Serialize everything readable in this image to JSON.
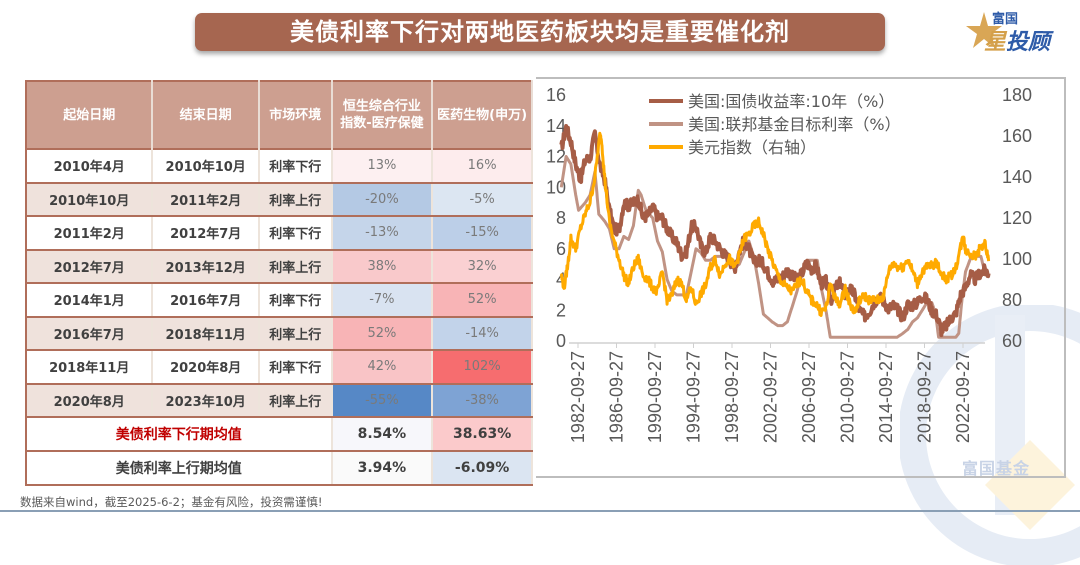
{
  "title": "美债利率下行对两地医药板块均是重要催化剂",
  "logo": {
    "top_text": "富国",
    "main_text_first": "星",
    "main_text_rest": "投顾"
  },
  "watermark_text": "富国基金",
  "table": {
    "headers": [
      "起始日期",
      "结束日期",
      "市场环境",
      "恒生综合行业\n指数-医疗保健",
      "医药生物(申万)"
    ],
    "header_line1": "恒生综合行业",
    "header_line2": "指数-医疗保健",
    "rows": [
      {
        "start": "2010年4月",
        "end": "2010年10月",
        "env": "利率下行",
        "hs": "13%",
        "sw": "16%"
      },
      {
        "start": "2010年10月",
        "end": "2011年2月",
        "env": "利率上行",
        "hs": "-20%",
        "sw": "-5%"
      },
      {
        "start": "2011年2月",
        "end": "2012年7月",
        "env": "利率下行",
        "hs": "-13%",
        "sw": "-15%"
      },
      {
        "start": "2012年7月",
        "end": "2013年12月",
        "env": "利率上行",
        "hs": "38%",
        "sw": "32%"
      },
      {
        "start": "2014年1月",
        "end": "2016年7月",
        "env": "利率下行",
        "hs": "-7%",
        "sw": "52%"
      },
      {
        "start": "2016年7月",
        "end": "2018年11月",
        "env": "利率上行",
        "hs": "52%",
        "sw": "-14%"
      },
      {
        "start": "2018年11月",
        "end": "2020年8月",
        "env": "利率下行",
        "hs": "42%",
        "sw": "102%"
      },
      {
        "start": "2020年8月",
        "end": "2023年10月",
        "env": "利率上行",
        "hs": "-55%",
        "sw": "-38%"
      }
    ],
    "cell_colors": [
      {
        "hs": "#fdf0f1",
        "sw": "#fdeced"
      },
      {
        "hs": "#b4c9e4",
        "sw": "#dce6f2"
      },
      {
        "hs": "#c5d5ea",
        "sw": "#bccfe8"
      },
      {
        "hs": "#f9c9cb",
        "sw": "#fad0d2"
      },
      {
        "hs": "#d9e3f1",
        "sw": "#f8b4b6"
      },
      {
        "hs": "#f8b4b6",
        "sw": "#c2d3ea"
      },
      {
        "hs": "#f9c4c6",
        "sw": "#f66d6f"
      },
      {
        "hs": "#5688c6",
        "sw": "#7ea3d4"
      }
    ],
    "avg_down": {
      "label": "美债利率下行期均值",
      "hs": "8.54%",
      "sw": "38.63%",
      "hs_color": "#f7f7fb",
      "sw_color": "#fbcacb"
    },
    "avg_up": {
      "label": "美债利率上行期均值",
      "hs": "3.94%",
      "sw": "-6.09%",
      "hs_color": "#fafafa",
      "sw_color": "#dbe5f2"
    }
  },
  "footnote": "数据来自wind，截至2025-6-2；基金有风险，投资需谨慎!",
  "chart_data": {
    "type": "line",
    "title": "",
    "x_tick_labels": [
      "1982-09-27",
      "1986-09-27",
      "1990-09-27",
      "1994-09-27",
      "1998-09-27",
      "2002-09-27",
      "2006-09-27",
      "2010-09-27",
      "2014-09-27",
      "2018-09-27",
      "2022-09-27"
    ],
    "x_range": [
      1981.0,
      2025.4
    ],
    "y_left": {
      "ticks": [
        0,
        2,
        4,
        6,
        8,
        10,
        12,
        14,
        16
      ],
      "range": [
        0,
        16
      ],
      "label": ""
    },
    "y_right": {
      "ticks": [
        60,
        80,
        100,
        120,
        140,
        160,
        180
      ],
      "range": [
        60,
        180
      ],
      "label": ""
    },
    "grid": false,
    "legend": "top-right",
    "series": [
      {
        "name": "美国:国债收益率:10年（%）",
        "axis": "left",
        "color": "#a65d46",
        "x": [
          1981.0,
          1981.5,
          1982.0,
          1982.5,
          1983.0,
          1983.5,
          1984.0,
          1984.5,
          1985.0,
          1985.5,
          1986.0,
          1986.5,
          1987.0,
          1987.5,
          1988.0,
          1988.5,
          1989.0,
          1989.5,
          1990.0,
          1990.5,
          1991.0,
          1991.5,
          1992.0,
          1992.5,
          1993.0,
          1993.5,
          1994.0,
          1994.5,
          1995.0,
          1995.5,
          1996.0,
          1996.5,
          1997.0,
          1997.5,
          1998.0,
          1998.5,
          1999.0,
          1999.5,
          2000.0,
          2000.5,
          2001.0,
          2001.5,
          2002.0,
          2002.5,
          2003.0,
          2003.5,
          2004.0,
          2004.5,
          2005.0,
          2005.5,
          2006.0,
          2006.5,
          2007.0,
          2007.5,
          2008.0,
          2008.5,
          2009.0,
          2009.5,
          2010.0,
          2010.5,
          2011.0,
          2011.5,
          2012.0,
          2012.5,
          2013.0,
          2013.5,
          2014.0,
          2014.5,
          2015.0,
          2015.5,
          2016.0,
          2016.5,
          2017.0,
          2017.5,
          2018.0,
          2018.5,
          2019.0,
          2019.5,
          2020.0,
          2020.5,
          2021.0,
          2021.5,
          2022.0,
          2022.5,
          2023.0,
          2023.5,
          2024.0,
          2024.5,
          2025.0,
          2025.4
        ],
        "y": [
          12.5,
          13.9,
          13.0,
          11.5,
          10.5,
          11.8,
          11.9,
          13.5,
          11.5,
          10.5,
          8.5,
          7.3,
          7.2,
          9.0,
          8.8,
          9.0,
          9.2,
          8.0,
          8.2,
          8.7,
          8.1,
          8.0,
          7.3,
          6.8,
          6.4,
          5.6,
          5.8,
          7.4,
          7.5,
          6.2,
          5.7,
          6.8,
          6.5,
          6.0,
          5.6,
          5.3,
          4.7,
          5.8,
          6.6,
          6.0,
          5.1,
          5.3,
          5.0,
          4.4,
          3.9,
          4.0,
          4.2,
          4.6,
          4.2,
          4.0,
          4.4,
          5.1,
          4.7,
          4.9,
          3.7,
          3.9,
          2.6,
          3.5,
          3.8,
          3.0,
          3.4,
          3.0,
          2.0,
          1.6,
          1.9,
          2.5,
          2.9,
          2.6,
          2.1,
          2.3,
          2.0,
          1.5,
          2.4,
          2.3,
          2.5,
          2.9,
          2.7,
          2.0,
          1.7,
          0.7,
          1.0,
          1.5,
          1.8,
          3.0,
          3.5,
          4.3,
          4.0,
          4.4,
          4.6,
          4.4
        ]
      },
      {
        "name": "美国:联邦基金目标利率（%）",
        "axis": "left",
        "color": "#c09384",
        "x": [
          1981.0,
          1981.5,
          1982.0,
          1982.5,
          1982.8,
          1983.5,
          1984.0,
          1984.5,
          1984.9,
          1985.5,
          1986.0,
          1986.5,
          1987.0,
          1987.5,
          1988.0,
          1988.5,
          1989.0,
          1989.3,
          1989.8,
          1990.5,
          1991.0,
          1991.5,
          1992.0,
          1992.5,
          1993.0,
          1993.5,
          1994.0,
          1994.5,
          1995.0,
          1995.5,
          1996.0,
          1996.5,
          1997.0,
          1998.0,
          1998.9,
          1999.5,
          2000.0,
          2000.5,
          2001.0,
          2001.5,
          2002.0,
          2002.9,
          2003.5,
          2004.0,
          2004.5,
          2005.0,
          2005.5,
          2006.0,
          2006.5,
          2007.0,
          2007.6,
          2008.0,
          2008.5,
          2008.95,
          2010.0,
          2012.0,
          2014.0,
          2015.9,
          2016.5,
          2017.0,
          2017.5,
          2018.0,
          2018.5,
          2019.0,
          2019.5,
          2019.9,
          2020.2,
          2021.0,
          2022.0,
          2022.3,
          2022.6,
          2023.0,
          2023.6,
          2024.0,
          2024.6,
          2025.0,
          2025.4
        ],
        "y": [
          10.0,
          12.0,
          11.5,
          9.5,
          8.5,
          9.0,
          9.5,
          11.0,
          8.25,
          7.8,
          7.3,
          6.0,
          6.0,
          6.8,
          6.6,
          7.5,
          9.8,
          9.5,
          8.5,
          8.0,
          6.5,
          5.8,
          4.0,
          3.25,
          3.0,
          3.0,
          3.0,
          4.5,
          6.0,
          5.75,
          5.25,
          5.25,
          5.5,
          5.5,
          4.75,
          5.0,
          5.75,
          6.5,
          5.5,
          3.75,
          1.75,
          1.25,
          1.0,
          1.0,
          1.25,
          2.25,
          3.25,
          4.5,
          5.25,
          5.25,
          5.25,
          3.5,
          2.0,
          0.25,
          0.25,
          0.25,
          0.25,
          0.25,
          0.5,
          0.75,
          1.25,
          1.5,
          2.0,
          2.5,
          2.5,
          1.75,
          0.25,
          0.25,
          0.25,
          0.5,
          2.5,
          4.5,
          5.5,
          5.5,
          5.5,
          4.5,
          4.5
        ]
      },
      {
        "name": "美元指数（右轴）",
        "axis": "right",
        "color": "#ffaa00",
        "x": [
          1981.0,
          1981.3,
          1981.7,
          1982.0,
          1982.5,
          1983.0,
          1983.5,
          1984.0,
          1984.5,
          1985.0,
          1985.2,
          1985.5,
          1986.0,
          1986.5,
          1987.0,
          1987.5,
          1988.0,
          1988.5,
          1989.0,
          1989.5,
          1990.0,
          1990.5,
          1991.0,
          1991.5,
          1992.0,
          1992.5,
          1993.0,
          1993.5,
          1994.0,
          1994.5,
          1995.0,
          1995.5,
          1996.0,
          1996.5,
          1997.0,
          1997.5,
          1998.0,
          1998.5,
          1999.0,
          1999.5,
          2000.0,
          2000.5,
          2001.0,
          2001.5,
          2002.0,
          2002.5,
          2003.0,
          2003.5,
          2004.0,
          2004.5,
          2005.0,
          2005.5,
          2006.0,
          2006.5,
          2007.0,
          2007.5,
          2008.0,
          2008.5,
          2009.0,
          2009.5,
          2010.0,
          2010.5,
          2011.0,
          2011.5,
          2012.0,
          2012.5,
          2013.0,
          2013.5,
          2014.0,
          2014.5,
          2015.0,
          2015.5,
          2016.0,
          2016.5,
          2017.0,
          2017.5,
          2018.0,
          2018.5,
          2019.0,
          2019.5,
          2020.0,
          2020.5,
          2021.0,
          2021.5,
          2022.0,
          2022.5,
          2022.8,
          2023.0,
          2023.5,
          2024.0,
          2024.5,
          2025.0,
          2025.4
        ],
        "y": [
          92,
          86,
          98,
          110,
          105,
          115,
          122,
          128,
          140,
          160,
          158,
          140,
          118,
          108,
          100,
          92,
          88,
          96,
          100,
          92,
          90,
          86,
          84,
          94,
          80,
          82,
          90,
          88,
          80,
          86,
          78,
          83,
          87,
          96,
          100,
          92,
          98,
          100,
          96,
          102,
          110,
          112,
          116,
          118,
          112,
          104,
          98,
          92,
          88,
          86,
          84,
          88,
          90,
          84,
          80,
          78,
          74,
          76,
          88,
          80,
          78,
          86,
          78,
          74,
          80,
          82,
          80,
          80,
          80,
          82,
          94,
          98,
          96,
          96,
          100,
          94,
          88,
          94,
          96,
          97,
          98,
          93,
          90,
          92,
          96,
          106,
          112,
          104,
          103,
          101,
          105,
          108,
          99
        ]
      }
    ]
  }
}
